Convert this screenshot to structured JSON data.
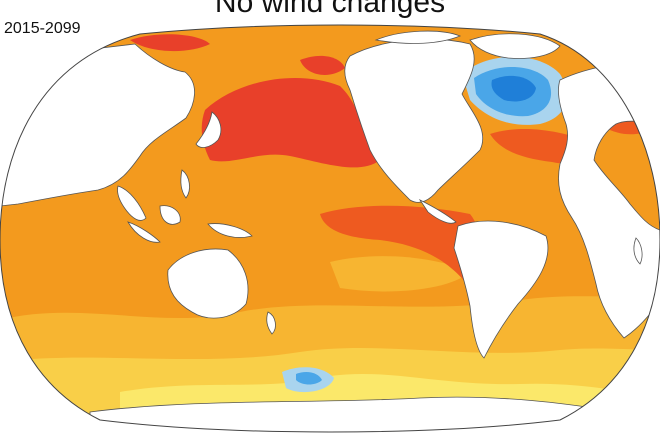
{
  "title": "No wind changes",
  "period": "2015-2099",
  "map": {
    "projection": "robinson-like, pacific-centered",
    "colors": {
      "ocean_base": "#f39a1e",
      "warm_band": "#f7b531",
      "strong_warm": "#ee5a20",
      "hot": "#e8402a",
      "cool_light": "#fbe86a",
      "cold_light": "#a9d4ee",
      "cold": "#4aa6e8",
      "cold_deep": "#1f7fd8",
      "land": "#ffffff",
      "coast": "#555555"
    }
  }
}
